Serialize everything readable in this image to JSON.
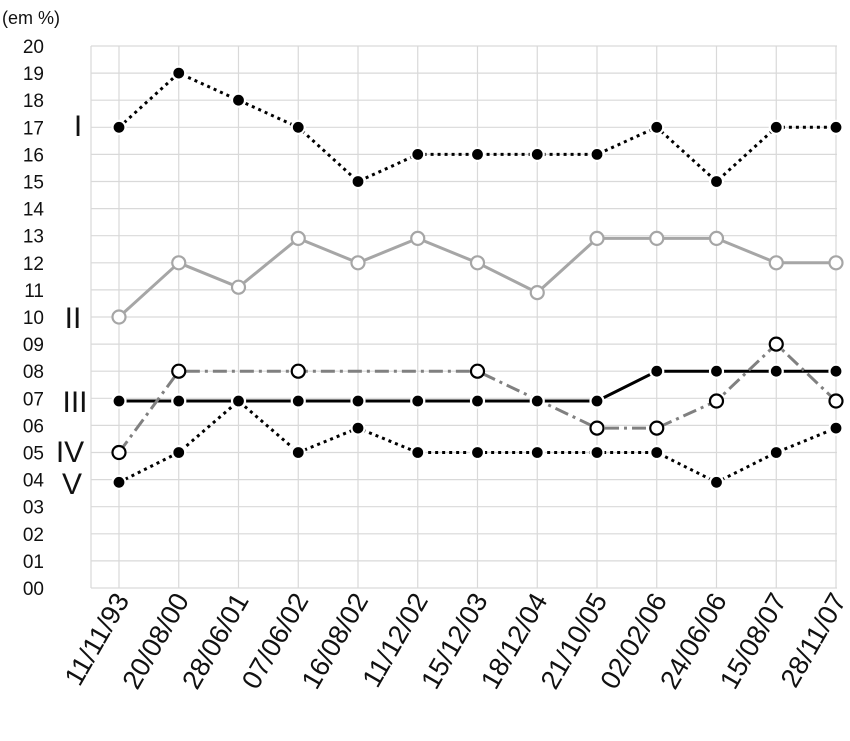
{
  "chart_data": {
    "type": "line",
    "unit_label": "(em %)",
    "categories": [
      "11/11/93",
      "20/08/00",
      "28/06/01",
      "07/06/02",
      "16/08/02",
      "11/12/02",
      "15/12/03",
      "18/12/04",
      "21/10/05",
      "02/02/06",
      "24/06/06",
      "15/08/07",
      "28/11/07"
    ],
    "y_ticks": [
      "00",
      "01",
      "02",
      "03",
      "04",
      "05",
      "06",
      "07",
      "08",
      "09",
      "10",
      "11",
      "12",
      "13",
      "14",
      "15",
      "16",
      "17",
      "18",
      "19",
      "20"
    ],
    "ylim": [
      0,
      20
    ],
    "grid": true,
    "legend": "none",
    "series": [
      {
        "name": "I",
        "values": [
          17,
          19,
          18,
          17,
          15,
          16,
          16,
          16,
          16,
          17,
          15,
          17,
          17
        ],
        "color": "#000000",
        "line_style": "dotted",
        "marker": "filled"
      },
      {
        "name": "II",
        "values": [
          10,
          12,
          11.1,
          12.9,
          12,
          12.9,
          12,
          10.9,
          12.9,
          12.9,
          12.9,
          12,
          12
        ],
        "color": "#a6a6a6",
        "line_style": "solid",
        "marker": "open-grey"
      },
      {
        "name": "III",
        "values": [
          6.9,
          6.9,
          6.9,
          6.9,
          6.9,
          6.9,
          6.9,
          6.9,
          6.9,
          8,
          8,
          8,
          8
        ],
        "color": "#000000",
        "line_style": "solid",
        "marker": "filled"
      },
      {
        "name": "IV",
        "values": [
          5,
          8,
          null,
          8,
          null,
          null,
          8,
          null,
          5.9,
          5.9,
          6.9,
          9,
          6.9
        ],
        "color": "#808080",
        "line_style": "dashdot",
        "marker": "open-black"
      },
      {
        "name": "V",
        "values": [
          3.9,
          5,
          6.9,
          5,
          5.9,
          5,
          5,
          5,
          5,
          5,
          3.9,
          5,
          5.9
        ],
        "color": "#000000",
        "line_style": "dotted",
        "marker": "filled"
      }
    ]
  }
}
